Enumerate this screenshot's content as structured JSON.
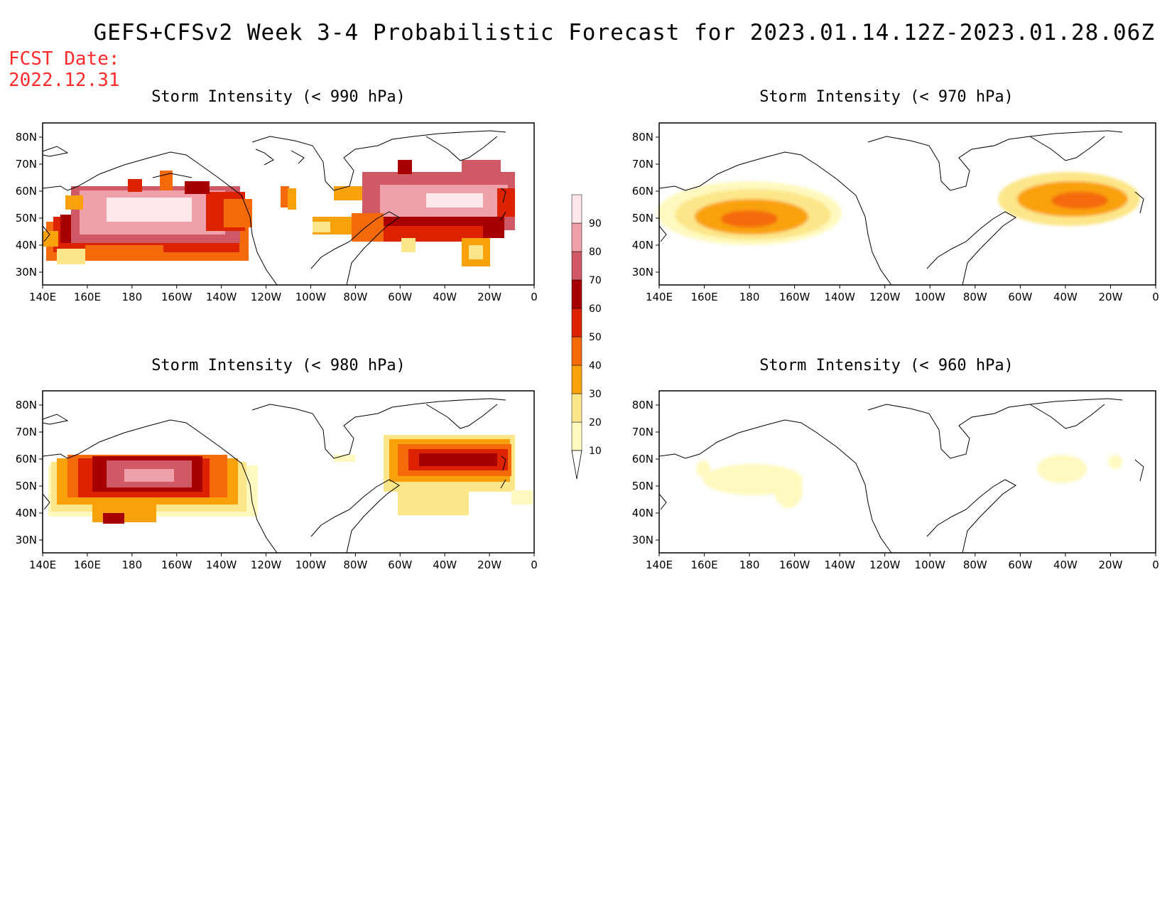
{
  "header": {
    "title": "GEFS+CFSv2 Week 3-4 Probabilistic Forecast for 2023.01.14.12Z-2023.01.28.06Z",
    "fcst_label": "FCST Date:",
    "fcst_date": "2022.12.31"
  },
  "panels": [
    {
      "title": "Storm Intensity (< 990 hPa)"
    },
    {
      "title": "Storm Intensity (< 970 hPa)"
    },
    {
      "title": "Storm Intensity (< 980 hPa)"
    },
    {
      "title": "Storm Intensity (< 960 hPa)"
    }
  ],
  "axes": {
    "lon_labels": [
      "140E",
      "160E",
      "180",
      "160W",
      "140W",
      "120W",
      "100W",
      "80W",
      "60W",
      "40W",
      "20W",
      "0"
    ],
    "lat_labels": [
      "80N",
      "70N",
      "60N",
      "50N",
      "40N",
      "30N"
    ]
  },
  "colorbar": {
    "levels": [
      "10",
      "20",
      "30",
      "40",
      "50",
      "60",
      "70",
      "80",
      "90"
    ],
    "colors": [
      "#fff9c0",
      "#fde68a",
      "#f9a10a",
      "#f46a0a",
      "#dd2200",
      "#a80000",
      "#cf5a66",
      "#efa0aa",
      "#ffe6ea"
    ]
  }
}
